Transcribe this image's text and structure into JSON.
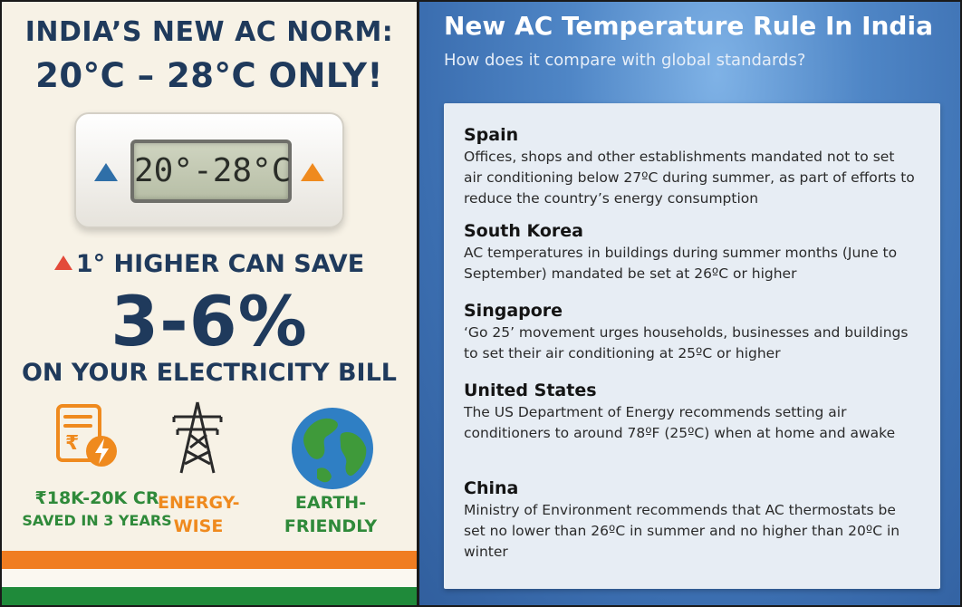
{
  "left": {
    "headline_line1": "INDIA’S NEW AC NORM:",
    "headline_line2": "20°C – 28°C ONLY!",
    "thermostat_display": "20°-28°C",
    "save_line": "1° HIGHER CAN SAVE",
    "save_percent": "3-6%",
    "save_suffix": "ON YOUR ELECTRICITY BILL",
    "benefits": [
      {
        "icon": "rupee-bill-icon",
        "line1": "₹18K-20K CR",
        "line2": "SAVED IN 3 YEARS"
      },
      {
        "icon": "power-tower-icon",
        "line1": "ENERGY-",
        "line2": "WISE"
      },
      {
        "icon": "earth-icon",
        "line1": "EARTH-",
        "line2": "FRIENDLY"
      }
    ],
    "colors": {
      "navy": "#1f3a5c",
      "saffron": "#f07d21",
      "green": "#1f8a3a"
    }
  },
  "right": {
    "title": "New AC Temperature Rule In India",
    "subtitle": "How does it compare with global standards?",
    "countries": [
      {
        "name": "Spain",
        "desc": "Offices, shops and other establishments mandated not to set air conditioning below 27ºC during summer, as part of efforts to reduce the country’s energy consumption"
      },
      {
        "name": "South Korea",
        "desc": "AC temperatures in buildings during summer months (June to September) mandated be set at 26ºC or higher"
      },
      {
        "name": "Singapore",
        "desc": "‘Go 25’ movement urges households, businesses and buildings to set their air conditioning at 25ºC or higher"
      },
      {
        "name": "United States",
        "desc": "The US Department of Energy recommends setting air conditioners to around 78ºF (25ºC) when at home and awake"
      },
      {
        "name": "China",
        "desc": "Ministry of Environment recommends that AC thermostats be set no lower than 26ºC in summer and no higher than 20ºC in winter"
      }
    ]
  }
}
